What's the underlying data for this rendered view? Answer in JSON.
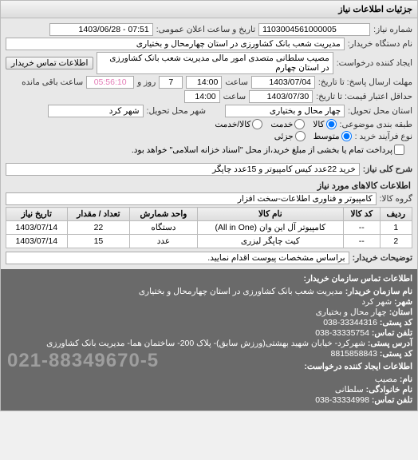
{
  "panel": {
    "title": "جزئیات اطلاعات نیاز"
  },
  "header": {
    "niaz_number_label": "شماره نیاز:",
    "niaz_number": "1103004561000005",
    "announce_label": "تاریخ و ساعت اعلان عمومی:",
    "announce_value": "07:51 - 1403/06/28",
    "org_label": "نام دستگاه خریدار:",
    "org_value": "مدیریت شعب بانک کشاورزی در استان چهارمحال و بختیاری",
    "requester_label": "ایجاد کننده درخواست:",
    "requester_value": "مصیب سلطانی متصدی امور مالی مدیریت شعب بانک کشاورزی در استان چهارم",
    "contact_btn": "اطلاعات تماس خریدار",
    "deadline_label": "مهلت ارسال پاسخ: تا تاریخ:",
    "deadline_date": "1403/07/04",
    "deadline_time_label": "ساعت",
    "deadline_time": "14:00",
    "remain_days": "7",
    "remain_days_label": "روز و",
    "remain_time": "05:56:10",
    "remain_label2": "ساعت باقی مانده",
    "validity_label": "حداقل اعتبار قیمت: تا تاریخ:",
    "validity_date": "1403/07/30",
    "validity_time_label": "ساعت",
    "validity_time": "14:00",
    "province_label": "استان محل تحویل:",
    "province_value": "چهار محال و بختیاری",
    "city_label": "شهر محل تحویل:",
    "city_value": "شهر کرد",
    "pricing_label": "طبقه بندی موضوعی:",
    "pricing_opts": [
      "کالا",
      "خدمت",
      "کالا/خدمت"
    ],
    "pricing_selected": 0,
    "buy_type_label": "نوع فرآیند خرید :",
    "buy_opts": [
      "متوسط",
      "جزئی"
    ],
    "buy_selected": 0,
    "pay_note_chk_label": "پرداخت تمام یا بخشی از مبلغ خرید،از محل \"اسناد خزانه اسلامی\" خواهد بود.",
    "topic_label": "شرح کلی نیاز:",
    "topic_value": "خرید 22عدد کیس کامپیوتر و 15عدد چاپگر"
  },
  "items": {
    "section_title": "اطلاعات کالاهای مورد نیاز",
    "group_label": "گروه کالا:",
    "group_value": "کامپیوتر و فناوری اطلاعات-سخت افزار",
    "columns": [
      "ردیف",
      "کد کالا",
      "نام کالا",
      "واحد شمارش",
      "تعداد / مقدار",
      "تاریخ نیاز"
    ],
    "rows": [
      [
        "1",
        "--",
        "کامپیوتر آل این وان (All in One)",
        "دستگاه",
        "22",
        "1403/07/14"
      ],
      [
        "2",
        "--",
        "کیت چاپگر لیزری",
        "عدد",
        "15",
        "1403/07/14"
      ]
    ],
    "note_label": "توضیحات خریدار:",
    "note_value": "براساس مشخصات پیوست اقدام نمایید."
  },
  "footer": {
    "title": "اطلاعات تماس سازمان خریدار:",
    "lines": [
      {
        "l": "نام سازمان خریدار:",
        "v": "مدیریت شعب بانک کشاورزی در استان چهارمحال و بختیاری"
      },
      {
        "l": "شهر:",
        "v": "شهر کرد"
      },
      {
        "l": "استان:",
        "v": "چهار محال و بختیاری"
      },
      {
        "l": "کد پستی:",
        "v": "33344316-038"
      },
      {
        "l": "تلفن تماس:",
        "v": "33335754-038"
      },
      {
        "l": "آدرس پستی:",
        "v": "شهرکرد- خیابان شهید بهشتی(ورزش سابق)- پلاک 200- ساختمان هما- مدیریت بانک کشاورزی"
      },
      {
        "l": "کد پستی:",
        "v": "8815858843"
      }
    ],
    "sub_title": "اطلاعات ایجاد کننده درخواست:",
    "sub_lines": [
      {
        "l": "نام:",
        "v": "مصیب"
      },
      {
        "l": "نام خانوادگی:",
        "v": "سلطانی"
      },
      {
        "l": "تلفن تماس:",
        "v": "33334998-038"
      }
    ],
    "watermark": "021-88349670-5"
  },
  "colors": {
    "countdown": "#e57db8"
  }
}
